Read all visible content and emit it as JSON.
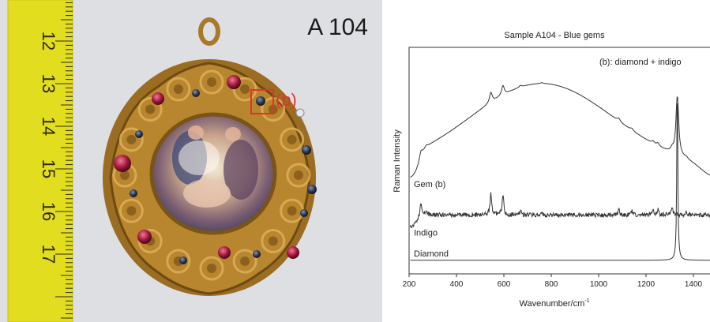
{
  "photo": {
    "sample_label": "A 104",
    "callout_label": "(b)",
    "ruler_labels": [
      "12",
      "13",
      "14",
      "15",
      "16",
      "17"
    ],
    "colors": {
      "background": "#dedfe3",
      "ruler": "#e3dd1f",
      "gold": "#b8862e",
      "callout": "#e8302a"
    }
  },
  "chart_data": {
    "type": "line",
    "title": "Sample A104 - Blue gems",
    "annotation": "(b): diamond + indigo",
    "xlabel": "Wavenumber/cm",
    "xlabel_superscript": "-1",
    "ylabel": "Raman Intensity",
    "xlim": [
      200,
      1500
    ],
    "xticks": [
      200,
      400,
      600,
      800,
      1000,
      1200,
      1400
    ],
    "series": [
      {
        "name": "Gem (b)",
        "offset": 0.42,
        "peaks": [
          [
            250,
            0.12
          ],
          [
            272,
            0.04
          ],
          [
            545,
            0.18
          ],
          [
            596,
            0.17
          ],
          [
            670,
            0.03
          ],
          [
            760,
            0.015
          ],
          [
            1085,
            0.05
          ],
          [
            1140,
            0.035
          ],
          [
            1230,
            0.04
          ],
          [
            1250,
            0.05
          ],
          [
            1310,
            0.06
          ],
          [
            1332,
            1.0
          ],
          [
            1370,
            0.03
          ]
        ],
        "broad": [
          [
            760,
            0.45,
            330
          ]
        ],
        "baseline": 0.0
      },
      {
        "name": "Indigo",
        "offset": 0.26,
        "peaks": [
          [
            250,
            0.12
          ],
          [
            272,
            0.04
          ],
          [
            545,
            0.18
          ],
          [
            596,
            0.17
          ],
          [
            670,
            0.03
          ],
          [
            760,
            0.015
          ],
          [
            1085,
            0.05
          ],
          [
            1140,
            0.035
          ],
          [
            1230,
            0.04
          ],
          [
            1250,
            0.05
          ],
          [
            1310,
            0.06
          ],
          [
            1370,
            0.03
          ]
        ]
      },
      {
        "name": "Diamond",
        "offset": 0.06,
        "peaks": [
          [
            1332,
            0.5
          ]
        ]
      }
    ]
  }
}
